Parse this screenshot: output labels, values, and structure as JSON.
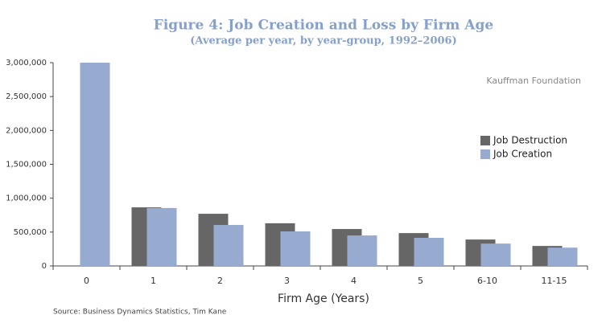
{
  "chart_data": {
    "type": "bar",
    "title": "Figure 4: Job Creation and Loss by Firm Age",
    "subtitle": "(Average per year, by year-group, 1992–2006)",
    "annotation": "Kauffman Foundation",
    "source": "Source: Business Dynamics Statistics, Tim Kane",
    "x_label": "Firm Age (Years)",
    "categories": [
      "0",
      "1",
      "2",
      "3",
      "4",
      "5",
      "6-10",
      "11-15"
    ],
    "series": [
      {
        "name": "Job Destruction",
        "color": "#666666",
        "values": [
          0,
          865000,
          770000,
          630000,
          545000,
          485000,
          390000,
          295000
        ]
      },
      {
        "name": "Job Creation",
        "color": "#97aacf",
        "values": [
          3000000,
          855000,
          605000,
          510000,
          450000,
          415000,
          330000,
          270000
        ]
      }
    ],
    "ylim": [
      0,
      3000000
    ],
    "yticks": [
      0,
      {
        "value": 500000,
        "label": "500,000"
      },
      {
        "value": 1000000,
        "label": "1,000,000"
      },
      {
        "value": 1500000,
        "label": "1,500,000"
      },
      {
        "value": 2000000,
        "label": "2,000,000"
      },
      {
        "value": 2500000,
        "label": "2,500,000"
      },
      {
        "value": 3000000,
        "label": "3,000,000"
      }
    ],
    "legend": "right"
  }
}
